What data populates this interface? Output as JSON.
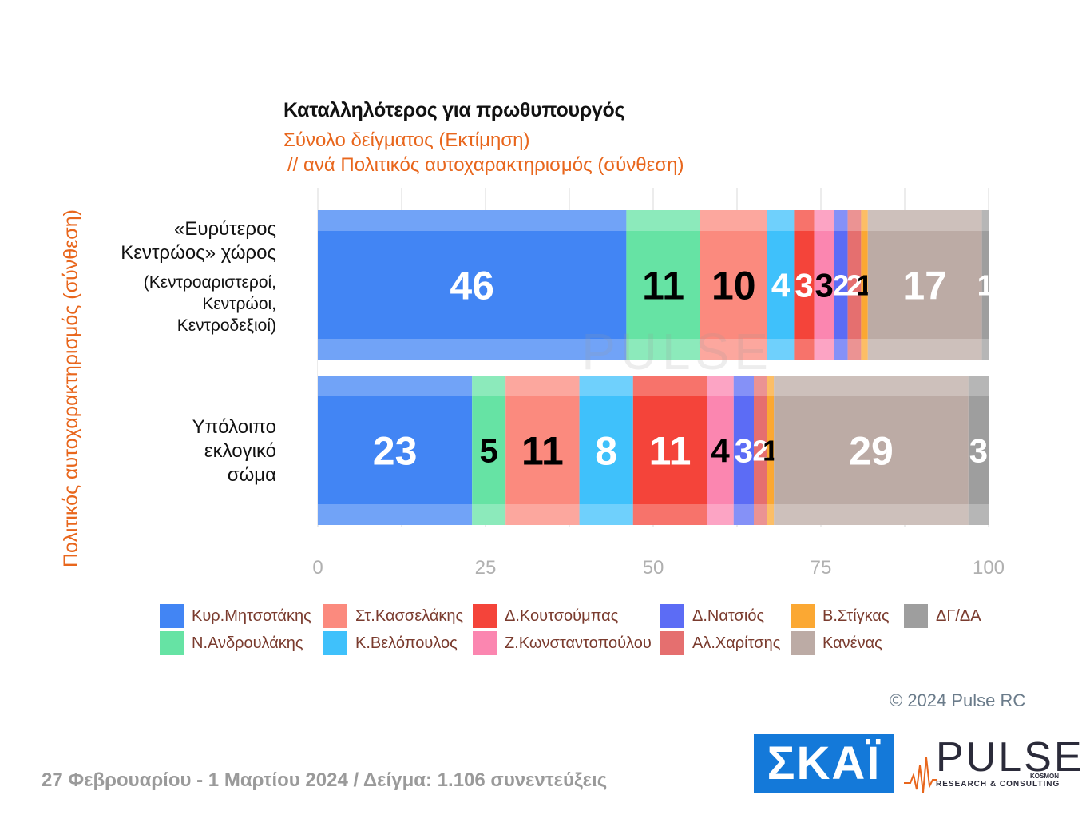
{
  "chart_data": {
    "type": "bar",
    "orientation": "horizontal",
    "stacked": true,
    "title": "Καταλληλότερος για πρωθυπουργός",
    "subtitle_1": "Σύνολο δείγματος   (Εκτίμηση)",
    "subtitle_2": "// ανά Πολιτικός αυτοχαρακτηρισμός (σύνθεση)",
    "ylabel": "Πολιτικός αυτοχαρακτηρισμός (σύνθεση)",
    "xlim": [
      0,
      100
    ],
    "xticks": [
      "0",
      "25",
      "50",
      "75",
      "100"
    ],
    "grid": true,
    "legend_position": "bottom",
    "categories": [
      {
        "main": [
          "«Ευρύτερος",
          "Κεντρώος» χώρος"
        ],
        "sub": [
          "(Κεντροαριστεροί,",
          "Κεντρώοι,",
          "Κεντροδεξιοί)"
        ]
      },
      {
        "main": [
          "Υπόλοιπο",
          "εκλογικό",
          "σώμα"
        ],
        "sub": []
      }
    ],
    "series": [
      {
        "name": "Κυρ.Μητσοτάκης",
        "color": "#4285f4",
        "values": [
          46,
          23
        ],
        "label_color": "#ffffff"
      },
      {
        "name": "Ν.Ανδρουλάκης",
        "color": "#66e3a4",
        "values": [
          11,
          5
        ],
        "label_color": "#000000"
      },
      {
        "name": "Στ.Κασσελάκης",
        "color": "#fb8a7e",
        "values": [
          10,
          11
        ],
        "label_color": "#000000"
      },
      {
        "name": "Κ.Βελόπουλος",
        "color": "#3fc1fb",
        "values": [
          4,
          8
        ],
        "label_color": "#ffffff"
      },
      {
        "name": "Δ.Κουτσούμπας",
        "color": "#f4443a",
        "values": [
          3,
          11
        ],
        "label_color": "#ffffff"
      },
      {
        "name": "Ζ.Κωνσταντοπούλου",
        "color": "#fb86b0",
        "values": [
          3,
          4
        ],
        "label_color": "#000000"
      },
      {
        "name": "Δ.Νατσιός",
        "color": "#5c6cf5",
        "values": [
          2,
          3
        ],
        "label_color": "#ffffff"
      },
      {
        "name": "Αλ.Χαρίτσης",
        "color": "#e56f6f",
        "values": [
          2,
          2
        ],
        "label_color": "#ffffff"
      },
      {
        "name": "Β.Στίγκας",
        "color": "#fba833",
        "values": [
          1,
          1
        ],
        "label_color": "#000000"
      },
      {
        "name": "Κανένας",
        "color": "#bcaba5",
        "values": [
          17,
          29
        ],
        "label_color": "#ffffff"
      },
      {
        "name": "ΔΓ/ΔΑ",
        "color": "#9e9e9e",
        "values": [
          1,
          3
        ],
        "label_color": "#ffffff"
      }
    ]
  },
  "legend_order": [
    "Κυρ.Μητσοτάκης",
    "Στ.Κασσελάκης",
    "Δ.Κουτσούμπας",
    "Δ.Νατσιός",
    "Β.Στίγκας",
    "ΔΓ/ΔΑ",
    "Ν.Ανδρουλάκης",
    "Κ.Βελόπουλος",
    "Ζ.Κωνσταντοπούλου",
    "Αλ.Χαρίτσης",
    "Κανένας"
  ],
  "copyright": "© 2024 Pulse RC",
  "footer": "27 Φεβρουαρίου - 1 Μαρτίου 2024  /  Δείγμα:  1.106 συνεντεύξεις",
  "logos": {
    "skai": "ΣΚΑΪ",
    "pulse": "PULSE",
    "pulse_tagline": "RESEARCH & CONSULTING",
    "pulse_kosmon": "KOSMON"
  }
}
